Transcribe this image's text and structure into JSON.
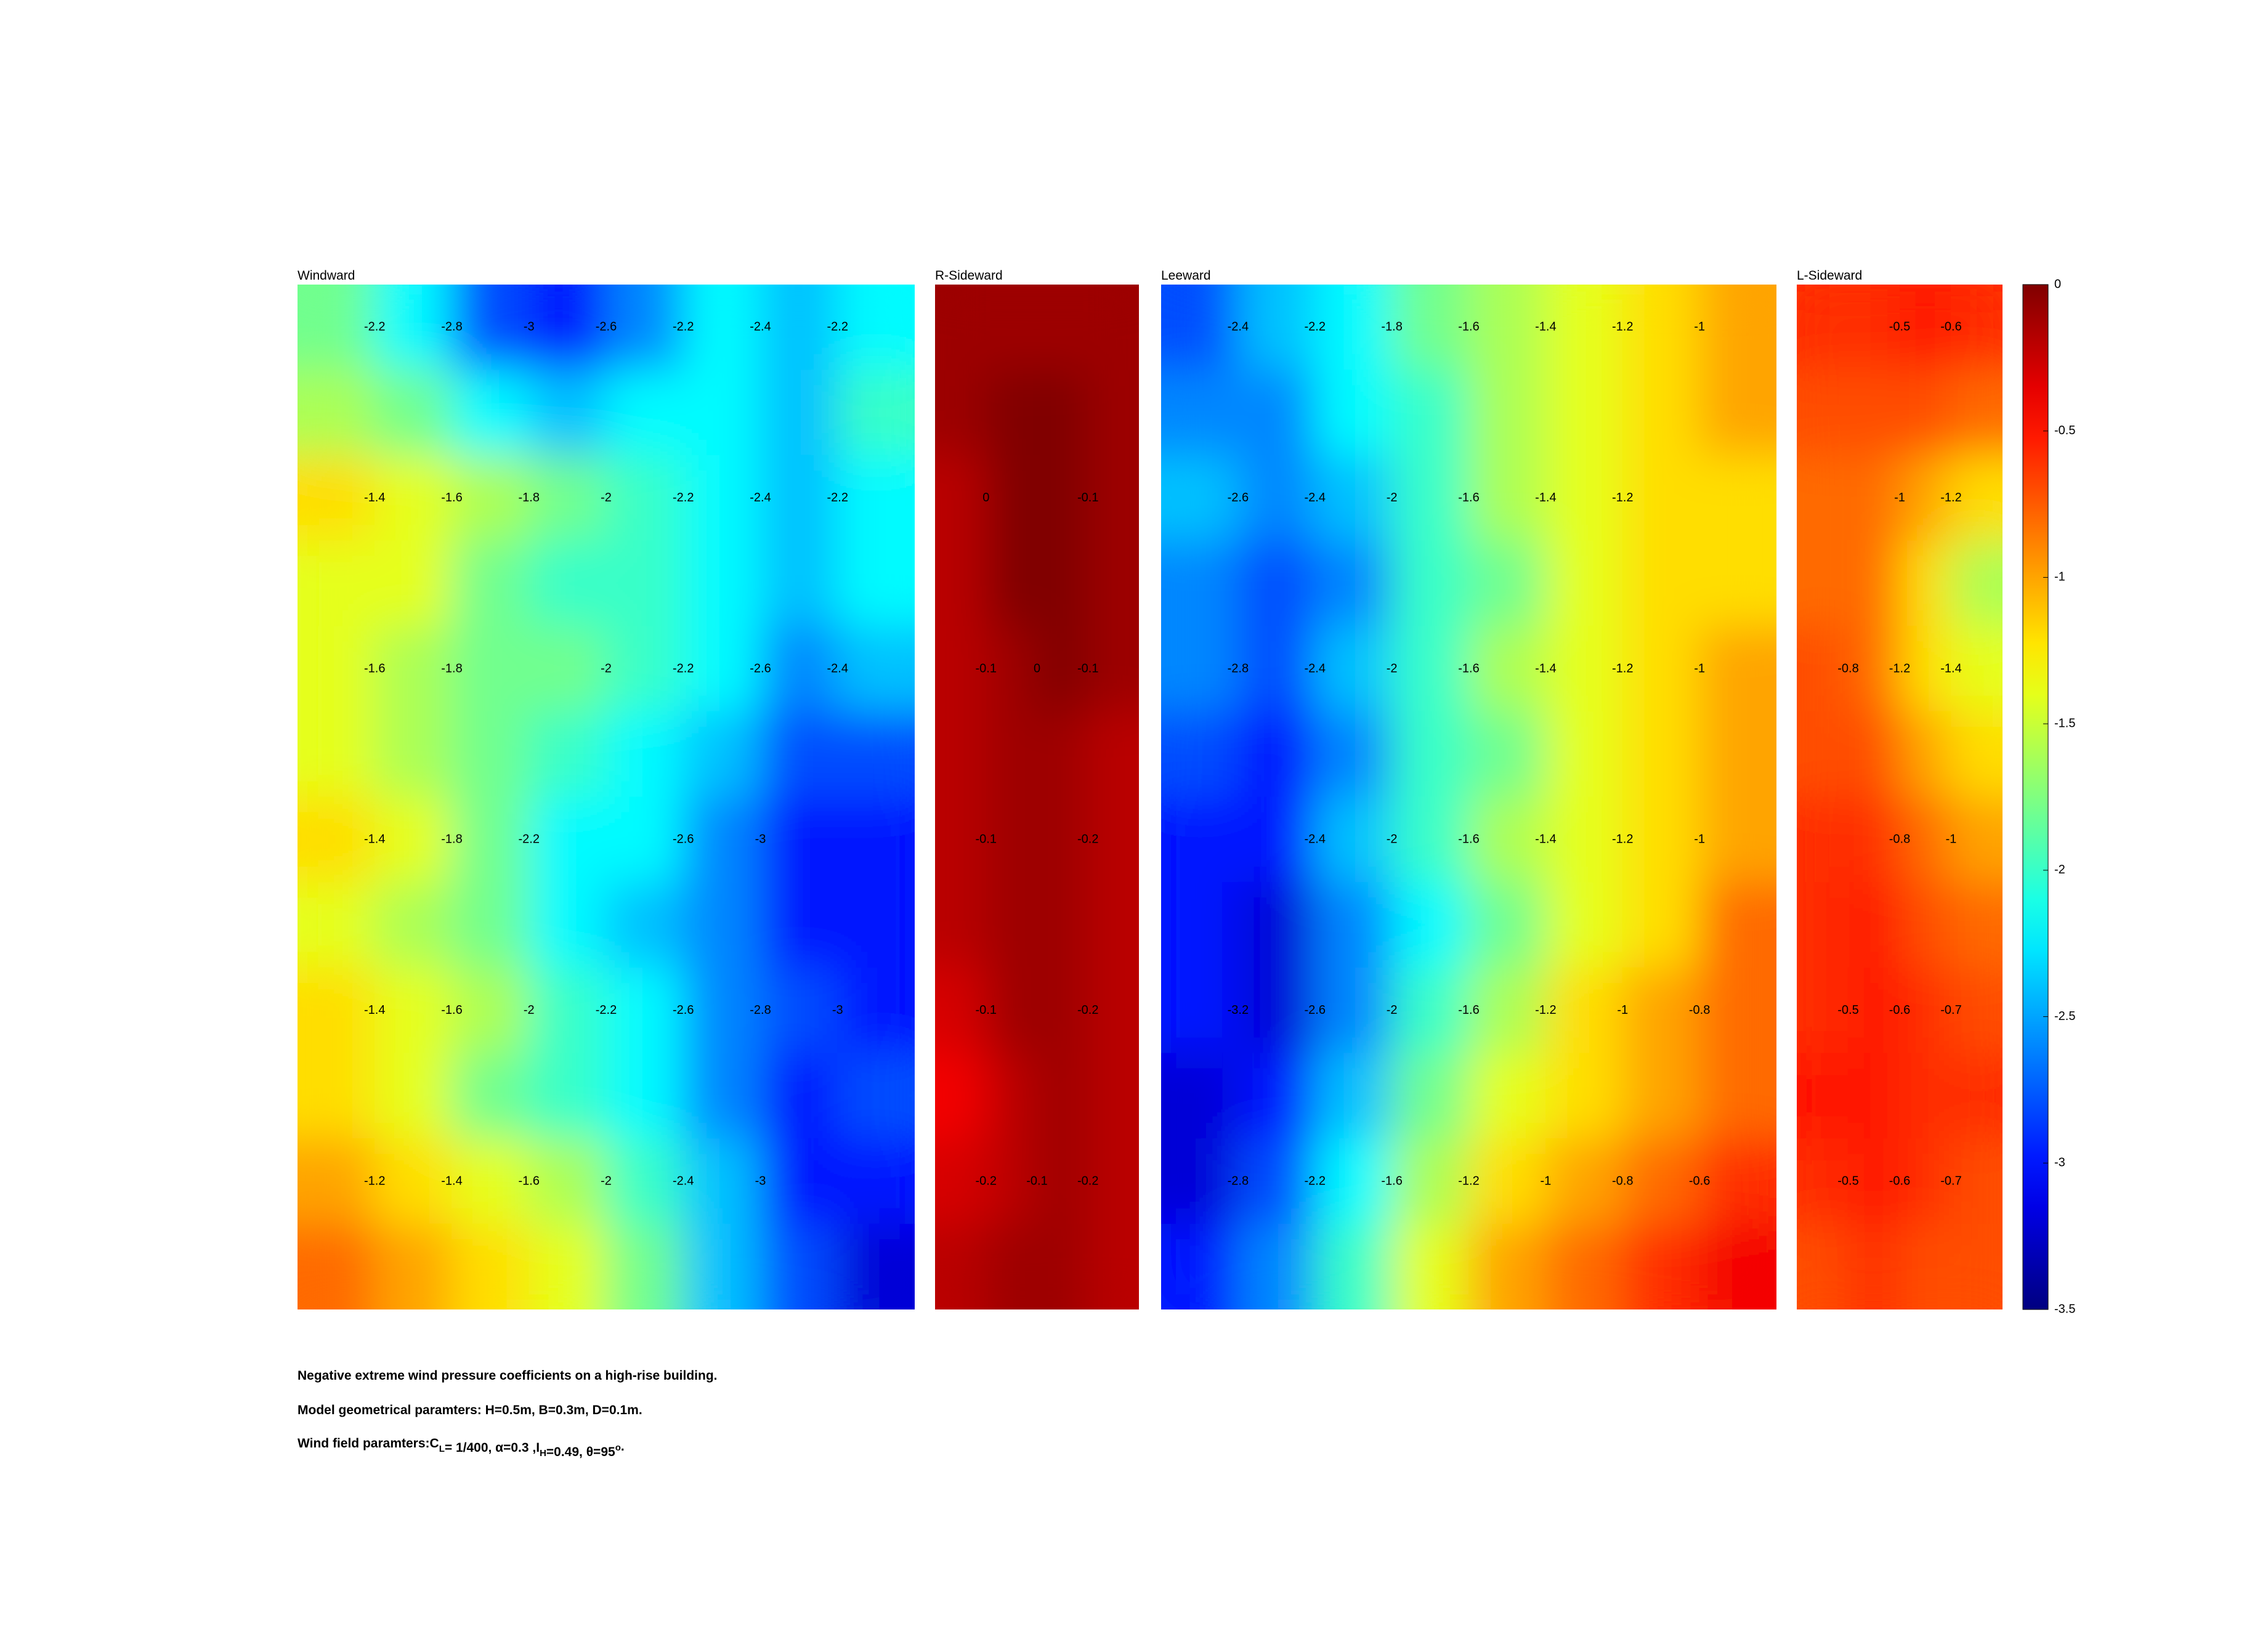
{
  "chart_data": [
    {
      "type": "contour",
      "title": "Windward",
      "values": [
        [
          -1.8,
          -2.2,
          -2.8,
          -3.0,
          -2.6,
          -2.2,
          -2.4,
          -2.2
        ],
        [
          -1.6,
          -1.8,
          -2.2,
          -2.4,
          -2.2,
          -2.2,
          -2.4,
          -2.0
        ],
        [
          -1.2,
          -1.4,
          -1.6,
          -1.8,
          -2.0,
          -2.2,
          -2.4,
          -2.2
        ],
        [
          -1.4,
          -1.4,
          -1.8,
          -2.0,
          -2.0,
          -2.2,
          -2.4,
          -2.2
        ],
        [
          -1.4,
          -1.6,
          -1.8,
          -1.8,
          -2.0,
          -2.2,
          -2.6,
          -2.4
        ],
        [
          -1.4,
          -1.6,
          -1.8,
          -2.0,
          -2.2,
          -2.4,
          -2.8,
          -2.8
        ],
        [
          -1.2,
          -1.4,
          -1.8,
          -2.2,
          -2.2,
          -2.6,
          -3.0,
          -3.0
        ],
        [
          -1.4,
          -1.6,
          -1.8,
          -2.2,
          -2.4,
          -2.6,
          -3.0,
          -3.0
        ],
        [
          -1.2,
          -1.4,
          -1.6,
          -2.0,
          -2.2,
          -2.6,
          -2.8,
          -3.0
        ],
        [
          -1.2,
          -1.4,
          -1.8,
          -2.0,
          -2.2,
          -2.6,
          -3.0,
          -2.8
        ],
        [
          -1.0,
          -1.2,
          -1.4,
          -1.6,
          -2.0,
          -2.4,
          -3.0,
          -3.0
        ],
        [
          -0.8,
          -1.0,
          -1.2,
          -1.4,
          -1.8,
          -2.4,
          -2.8,
          -3.2
        ]
      ]
    },
    {
      "type": "contour",
      "title": "R-Sideward",
      "values": [
        [
          -0.1,
          -0.1,
          -0.1,
          -0.1
        ],
        [
          -0.1,
          0,
          0,
          -0.1
        ],
        [
          -0.2,
          0,
          0,
          -0.1
        ],
        [
          -0.2,
          0,
          0,
          -0.1
        ],
        [
          -0.2,
          -0.1,
          0,
          -0.1
        ],
        [
          -0.2,
          -0.1,
          -0.1,
          -0.2
        ],
        [
          -0.2,
          -0.1,
          -0.1,
          -0.2
        ],
        [
          -0.2,
          -0.1,
          -0.1,
          -0.2
        ],
        [
          -0.3,
          -0.1,
          -0.1,
          -0.2
        ],
        [
          -0.4,
          -0.2,
          -0.1,
          -0.2
        ],
        [
          -0.3,
          -0.2,
          -0.1,
          -0.2
        ],
        [
          -0.2,
          -0.1,
          -0.1,
          -0.2
        ]
      ]
    },
    {
      "type": "contour",
      "title": "Leeward",
      "values": [
        [
          -2.8,
          -2.4,
          -2.2,
          -1.8,
          -1.6,
          -1.4,
          -1.2,
          -1.0
        ],
        [
          -2.6,
          -2.6,
          -2.2,
          -2.0,
          -1.6,
          -1.4,
          -1.2,
          -1.0
        ],
        [
          -2.4,
          -2.6,
          -2.4,
          -2.0,
          -1.6,
          -1.4,
          -1.2,
          -1.2
        ],
        [
          -2.6,
          -2.8,
          -2.6,
          -2.0,
          -1.8,
          -1.4,
          -1.2,
          -1.2
        ],
        [
          -2.6,
          -2.8,
          -2.4,
          -2.0,
          -1.6,
          -1.4,
          -1.2,
          -1.0
        ],
        [
          -2.8,
          -3.0,
          -2.6,
          -2.0,
          -1.8,
          -1.4,
          -1.2,
          -1.0
        ],
        [
          -3.0,
          -3.0,
          -2.4,
          -2.0,
          -1.6,
          -1.4,
          -1.2,
          -1.0
        ],
        [
          -3.0,
          -3.2,
          -2.6,
          -2.2,
          -1.8,
          -1.4,
          -1.2,
          -0.8
        ],
        [
          -3.0,
          -3.2,
          -2.6,
          -2.0,
          -1.6,
          -1.2,
          -1.0,
          -0.8
        ],
        [
          -3.2,
          -3.0,
          -2.4,
          -1.8,
          -1.4,
          -1.2,
          -1.0,
          -0.8
        ],
        [
          -3.2,
          -2.8,
          -2.2,
          -1.6,
          -1.2,
          -1.0,
          -0.8,
          -0.6
        ],
        [
          -3.0,
          -2.6,
          -2.0,
          -1.4,
          -1.0,
          -0.8,
          -0.6,
          -0.4
        ]
      ]
    },
    {
      "type": "contour",
      "title": "L-Sideward",
      "values": [
        [
          -0.6,
          -0.6,
          -0.5,
          -0.6
        ],
        [
          -0.7,
          -0.7,
          -0.7,
          -0.8
        ],
        [
          -0.8,
          -0.8,
          -1.0,
          -1.2
        ],
        [
          -0.8,
          -0.8,
          -1.2,
          -1.6
        ],
        [
          -0.7,
          -0.8,
          -1.2,
          -1.4
        ],
        [
          -0.7,
          -0.7,
          -1.0,
          -1.2
        ],
        [
          -0.6,
          -0.6,
          -0.8,
          -1.0
        ],
        [
          -0.6,
          -0.5,
          -0.7,
          -0.8
        ],
        [
          -0.6,
          -0.5,
          -0.6,
          -0.7
        ],
        [
          -0.5,
          -0.5,
          -0.6,
          -0.6
        ],
        [
          -0.6,
          -0.5,
          -0.6,
          -0.7
        ],
        [
          -0.7,
          -0.6,
          -0.7,
          -0.7
        ]
      ]
    }
  ],
  "colorbar": {
    "colormap": "jet",
    "ylim": [
      -3.5,
      0
    ],
    "yticks": [
      0,
      -0.5,
      -1,
      -1.5,
      -2,
      -2.5,
      -3,
      -3.5
    ]
  },
  "caption": [
    [
      {
        "text": "Negative extreme wind pressure coefficients on a high-rise building."
      }
    ],
    [
      {
        "text": "Model geometrical paramters: H=0.5m, B=0.3m, D=0.1m."
      }
    ],
    [
      {
        "text": "Wind field paramters:C"
      },
      {
        "text": "L",
        "shift": "sub"
      },
      {
        "text": "= 1/400, α=0.3 ,I"
      },
      {
        "text": "H",
        "shift": "sub"
      },
      {
        "text": "=0.49, θ=95"
      },
      {
        "text": "o",
        "shift": "super"
      },
      {
        "text": "."
      }
    ]
  ]
}
